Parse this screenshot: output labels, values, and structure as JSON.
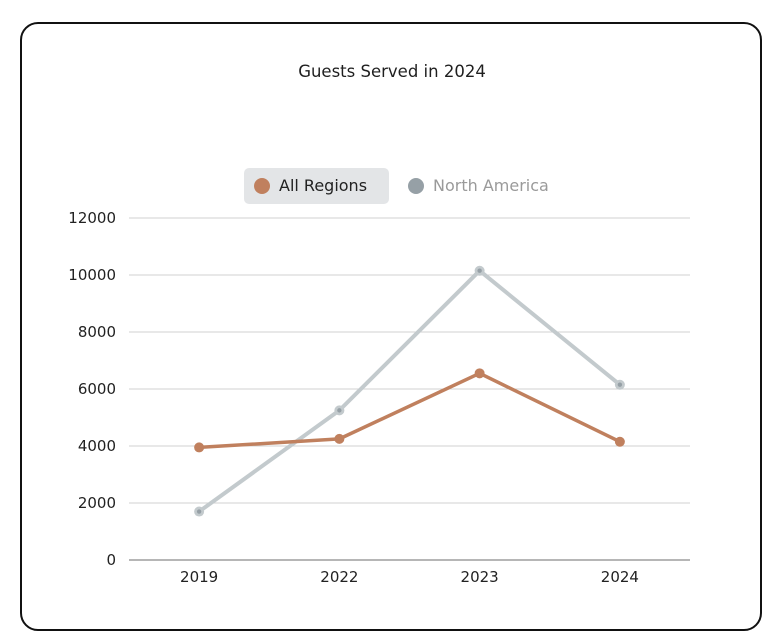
{
  "chart_data": {
    "type": "line",
    "title": "Guests Served in 2024",
    "xlabel": "",
    "ylabel": "",
    "categories": [
      "2019",
      "2022",
      "2023",
      "2024"
    ],
    "ylim": [
      0,
      12000
    ],
    "yticks": [
      0,
      2000,
      4000,
      6000,
      8000,
      10000,
      12000
    ],
    "grid": true,
    "legend_position": "top",
    "series": [
      {
        "name": "All Regions",
        "color": "#c0805e",
        "active": true,
        "values": [
          3950,
          4250,
          6550,
          4150
        ]
      },
      {
        "name": "North America",
        "color": "#c3cacd",
        "marker_color": "#96a0a6",
        "active": false,
        "values": [
          1700,
          5250,
          10150,
          6150
        ]
      }
    ]
  }
}
